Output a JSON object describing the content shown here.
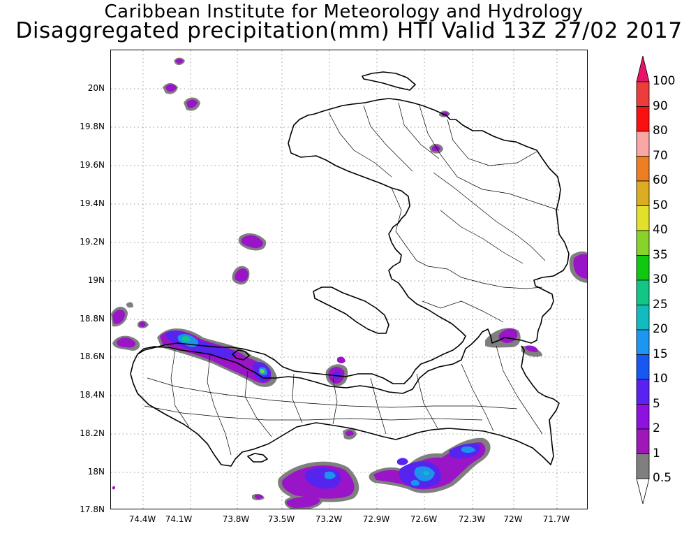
{
  "header": {
    "institute": "Caribbean Institute for Meteorology and Hydrology",
    "product": "Disaggregated precipitation(mm) HTI Valid 13Z 27/02 2017"
  },
  "map": {
    "lat_labels": [
      "20N",
      "19.8N",
      "19.6N",
      "19.4N",
      "19.2N",
      "19N",
      "18.8N",
      "18.6N",
      "18.4N",
      "18.2N",
      "18N",
      "17.8N"
    ],
    "lon_labels": [
      "74.4W",
      "74.1W",
      "73.8W",
      "73.5W",
      "73.2W",
      "72.9W",
      "72.6W",
      "72.3W",
      "72W",
      "71.7W"
    ],
    "lat_range": [
      17.8,
      20.2
    ],
    "lon_range": [
      -74.55,
      -71.55
    ],
    "gridlines": true
  },
  "legend": {
    "labels": [
      "100",
      "90",
      "80",
      "70",
      "60",
      "50",
      "40",
      "35",
      "30",
      "25",
      "20",
      "15",
      "10",
      "5",
      "2",
      "1",
      "0.5"
    ],
    "colors": {
      "100": "#e8116b",
      "90": "#ec3c3c",
      "80": "#fb1010",
      "70": "#f9a6a6",
      "60": "#ee7e24",
      "50": "#dcac22",
      "40": "#e2e02a",
      "35": "#88d22c",
      "30": "#10c810",
      "25": "#12c685",
      "20": "#12bbc0",
      "15": "#1c96f0",
      "10": "#1757f2",
      "5": "#5a22f0",
      "2": "#9010e0",
      "1": "#9e18b8",
      "0.5": "#7f7f7f"
    }
  }
}
